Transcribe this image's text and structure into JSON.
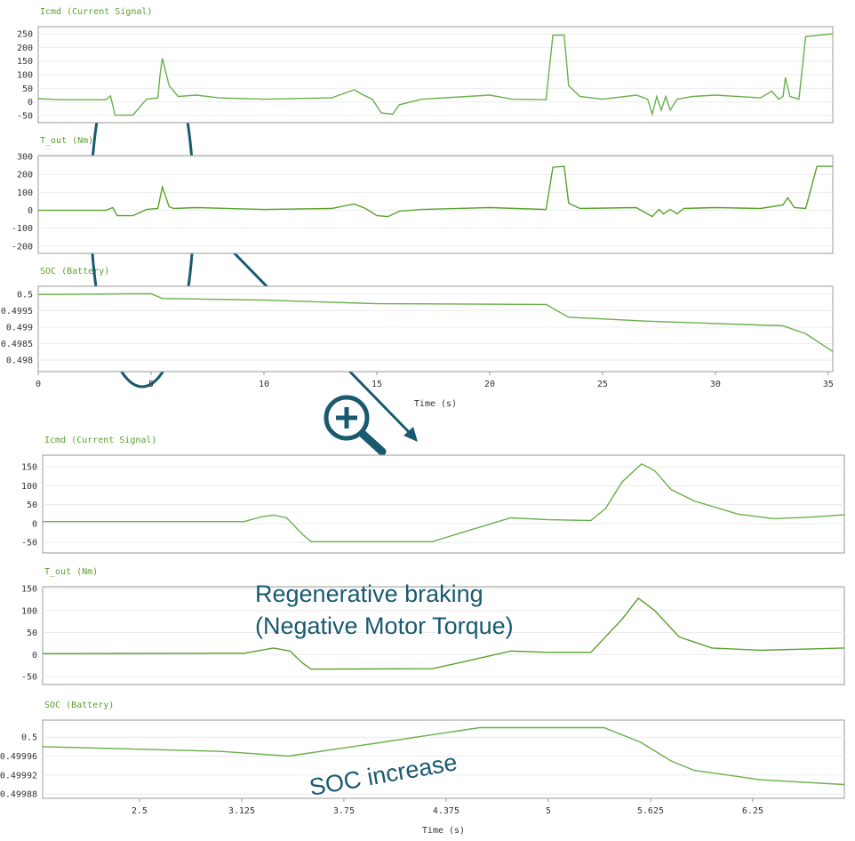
{
  "chart_data": [
    {
      "type": "line",
      "title": "Icmd (Current Signal)",
      "color": "#6ab04c",
      "grid": true,
      "xlim": [
        0,
        35.2
      ],
      "ylim": [
        -76,
        276
      ],
      "yticks": [
        250,
        200,
        150,
        100,
        50,
        0,
        -50
      ],
      "x": [
        0,
        0.5,
        1,
        3,
        3.2,
        3.4,
        4.2,
        4.8,
        5.3,
        5.4,
        5.5,
        5.8,
        6.2,
        7,
        8,
        10,
        13,
        14,
        14.3,
        14.8,
        15.2,
        15.7,
        16,
        17,
        19,
        20,
        21,
        22.5,
        22.8,
        23.3,
        23.5,
        24,
        25,
        26.5,
        27,
        27.2,
        27.4,
        27.6,
        27.8,
        28,
        28.3,
        29,
        30,
        32,
        32.5,
        32.8,
        33,
        33.1,
        33.3,
        33.7,
        34,
        35.2
      ],
      "values": [
        12,
        10,
        8,
        8,
        22,
        -48,
        -48,
        10,
        15,
        100,
        160,
        60,
        20,
        25,
        15,
        10,
        15,
        45,
        30,
        10,
        -40,
        -45,
        -10,
        10,
        20,
        25,
        10,
        8,
        245,
        245,
        60,
        20,
        10,
        25,
        10,
        -45,
        20,
        -30,
        20,
        -30,
        10,
        20,
        25,
        15,
        40,
        10,
        20,
        90,
        20,
        10,
        240,
        250
      ]
    },
    {
      "type": "line",
      "title": "T_out (Nm)",
      "color": "#5aa02c",
      "grid": true,
      "xlim": [
        0,
        35.2
      ],
      "ylim": [
        -240,
        305
      ],
      "yticks": [
        300,
        200,
        100,
        0,
        -100,
        -200
      ],
      "x": [
        0,
        3,
        3.3,
        3.5,
        4.2,
        4.8,
        5.3,
        5.5,
        5.8,
        6,
        7,
        10,
        13,
        14,
        14.5,
        15,
        15.5,
        16,
        17,
        20,
        22.5,
        22.8,
        23.3,
        23.5,
        24,
        26.5,
        27.2,
        27.5,
        27.7,
        28,
        28.3,
        28.6,
        30,
        32,
        33,
        33.2,
        33.5,
        34,
        34.5,
        35.2
      ],
      "values": [
        0,
        0,
        15,
        -30,
        -30,
        5,
        10,
        130,
        20,
        10,
        15,
        5,
        10,
        35,
        10,
        -30,
        -35,
        -5,
        5,
        15,
        5,
        240,
        245,
        40,
        10,
        15,
        -35,
        5,
        -20,
        5,
        -20,
        10,
        15,
        10,
        30,
        70,
        15,
        10,
        245,
        245
      ]
    },
    {
      "type": "line",
      "title": "SOC (Battery)",
      "color": "#6ab04c",
      "grid": true,
      "xlabel": "Time (s)",
      "xlim": [
        0,
        35.2
      ],
      "xticks": [
        0,
        5,
        10,
        15,
        20,
        25,
        30,
        35
      ],
      "ylim": [
        0.49765,
        0.50024
      ],
      "yticks": [
        0.5,
        0.4995,
        0.499,
        0.4985,
        0.498
      ],
      "x": [
        0,
        4,
        5,
        5.5,
        10,
        15,
        22.5,
        23.5,
        27,
        33,
        34,
        35.2
      ],
      "values": [
        0.49999,
        0.50001,
        0.50001,
        0.49987,
        0.49982,
        0.49971,
        0.49969,
        0.4993,
        0.49918,
        0.49904,
        0.4988,
        0.49826
      ]
    },
    {
      "type": "line",
      "title": "Icmd (Current Signal)",
      "color": "#6ab04c",
      "grid": true,
      "xlim": [
        1.908,
        6.81
      ],
      "ylim": [
        -78,
        181
      ],
      "yticks": [
        150,
        100,
        50,
        0,
        -50
      ],
      "x": [
        1.908,
        3.14,
        3.25,
        3.32,
        3.4,
        3.5,
        3.55,
        4.29,
        4.5,
        4.77,
        5.0,
        5.26,
        5.35,
        5.45,
        5.57,
        5.65,
        5.75,
        5.89,
        6.16,
        6.38,
        6.6,
        6.81
      ],
      "values": [
        5,
        5,
        18,
        22,
        15,
        -30,
        -48,
        -48,
        -20,
        15,
        10,
        8,
        40,
        110,
        158,
        140,
        90,
        60,
        25,
        13,
        17,
        23
      ]
    },
    {
      "type": "line",
      "title": "T_out (Nm)",
      "color": "#5aa02c",
      "grid": true,
      "annotation": [
        "Regenerative braking",
        "(Negative Motor Torque)"
      ],
      "xlim": [
        1.908,
        6.81
      ],
      "ylim": [
        -68,
        154
      ],
      "yticks": [
        150,
        100,
        50,
        0,
        -50
      ],
      "x": [
        1.908,
        3.14,
        3.32,
        3.42,
        3.5,
        3.55,
        4.29,
        4.5,
        4.77,
        5.0,
        5.26,
        5.45,
        5.55,
        5.65,
        5.8,
        6.0,
        6.3,
        6.81
      ],
      "values": [
        2,
        3,
        15,
        8,
        -20,
        -33,
        -32,
        -15,
        8,
        5,
        5,
        80,
        128,
        100,
        40,
        15,
        10,
        15
      ]
    },
    {
      "type": "line",
      "title": "SOC (Battery)",
      "color": "#6ab04c",
      "grid": true,
      "xlabel": "Time (s)",
      "annotation": [
        "SOC increase"
      ],
      "xlim": [
        1.908,
        6.81
      ],
      "xticks": [
        2.5,
        3.125,
        3.75,
        4.375,
        5,
        5.625,
        6.25
      ],
      "ylim": [
        0.499871,
        0.500036
      ],
      "yticks": [
        0.5,
        0.49996,
        0.49992,
        0.49988
      ],
      "x": [
        1.908,
        3.0,
        3.41,
        4.0,
        4.58,
        5.34,
        5.56,
        5.75,
        5.89,
        6.3,
        6.81
      ],
      "values": [
        0.49998,
        0.49997,
        0.49996,
        0.49999,
        0.50002,
        0.50002,
        0.49999,
        0.49995,
        0.49993,
        0.49991,
        0.4999
      ]
    }
  ]
}
